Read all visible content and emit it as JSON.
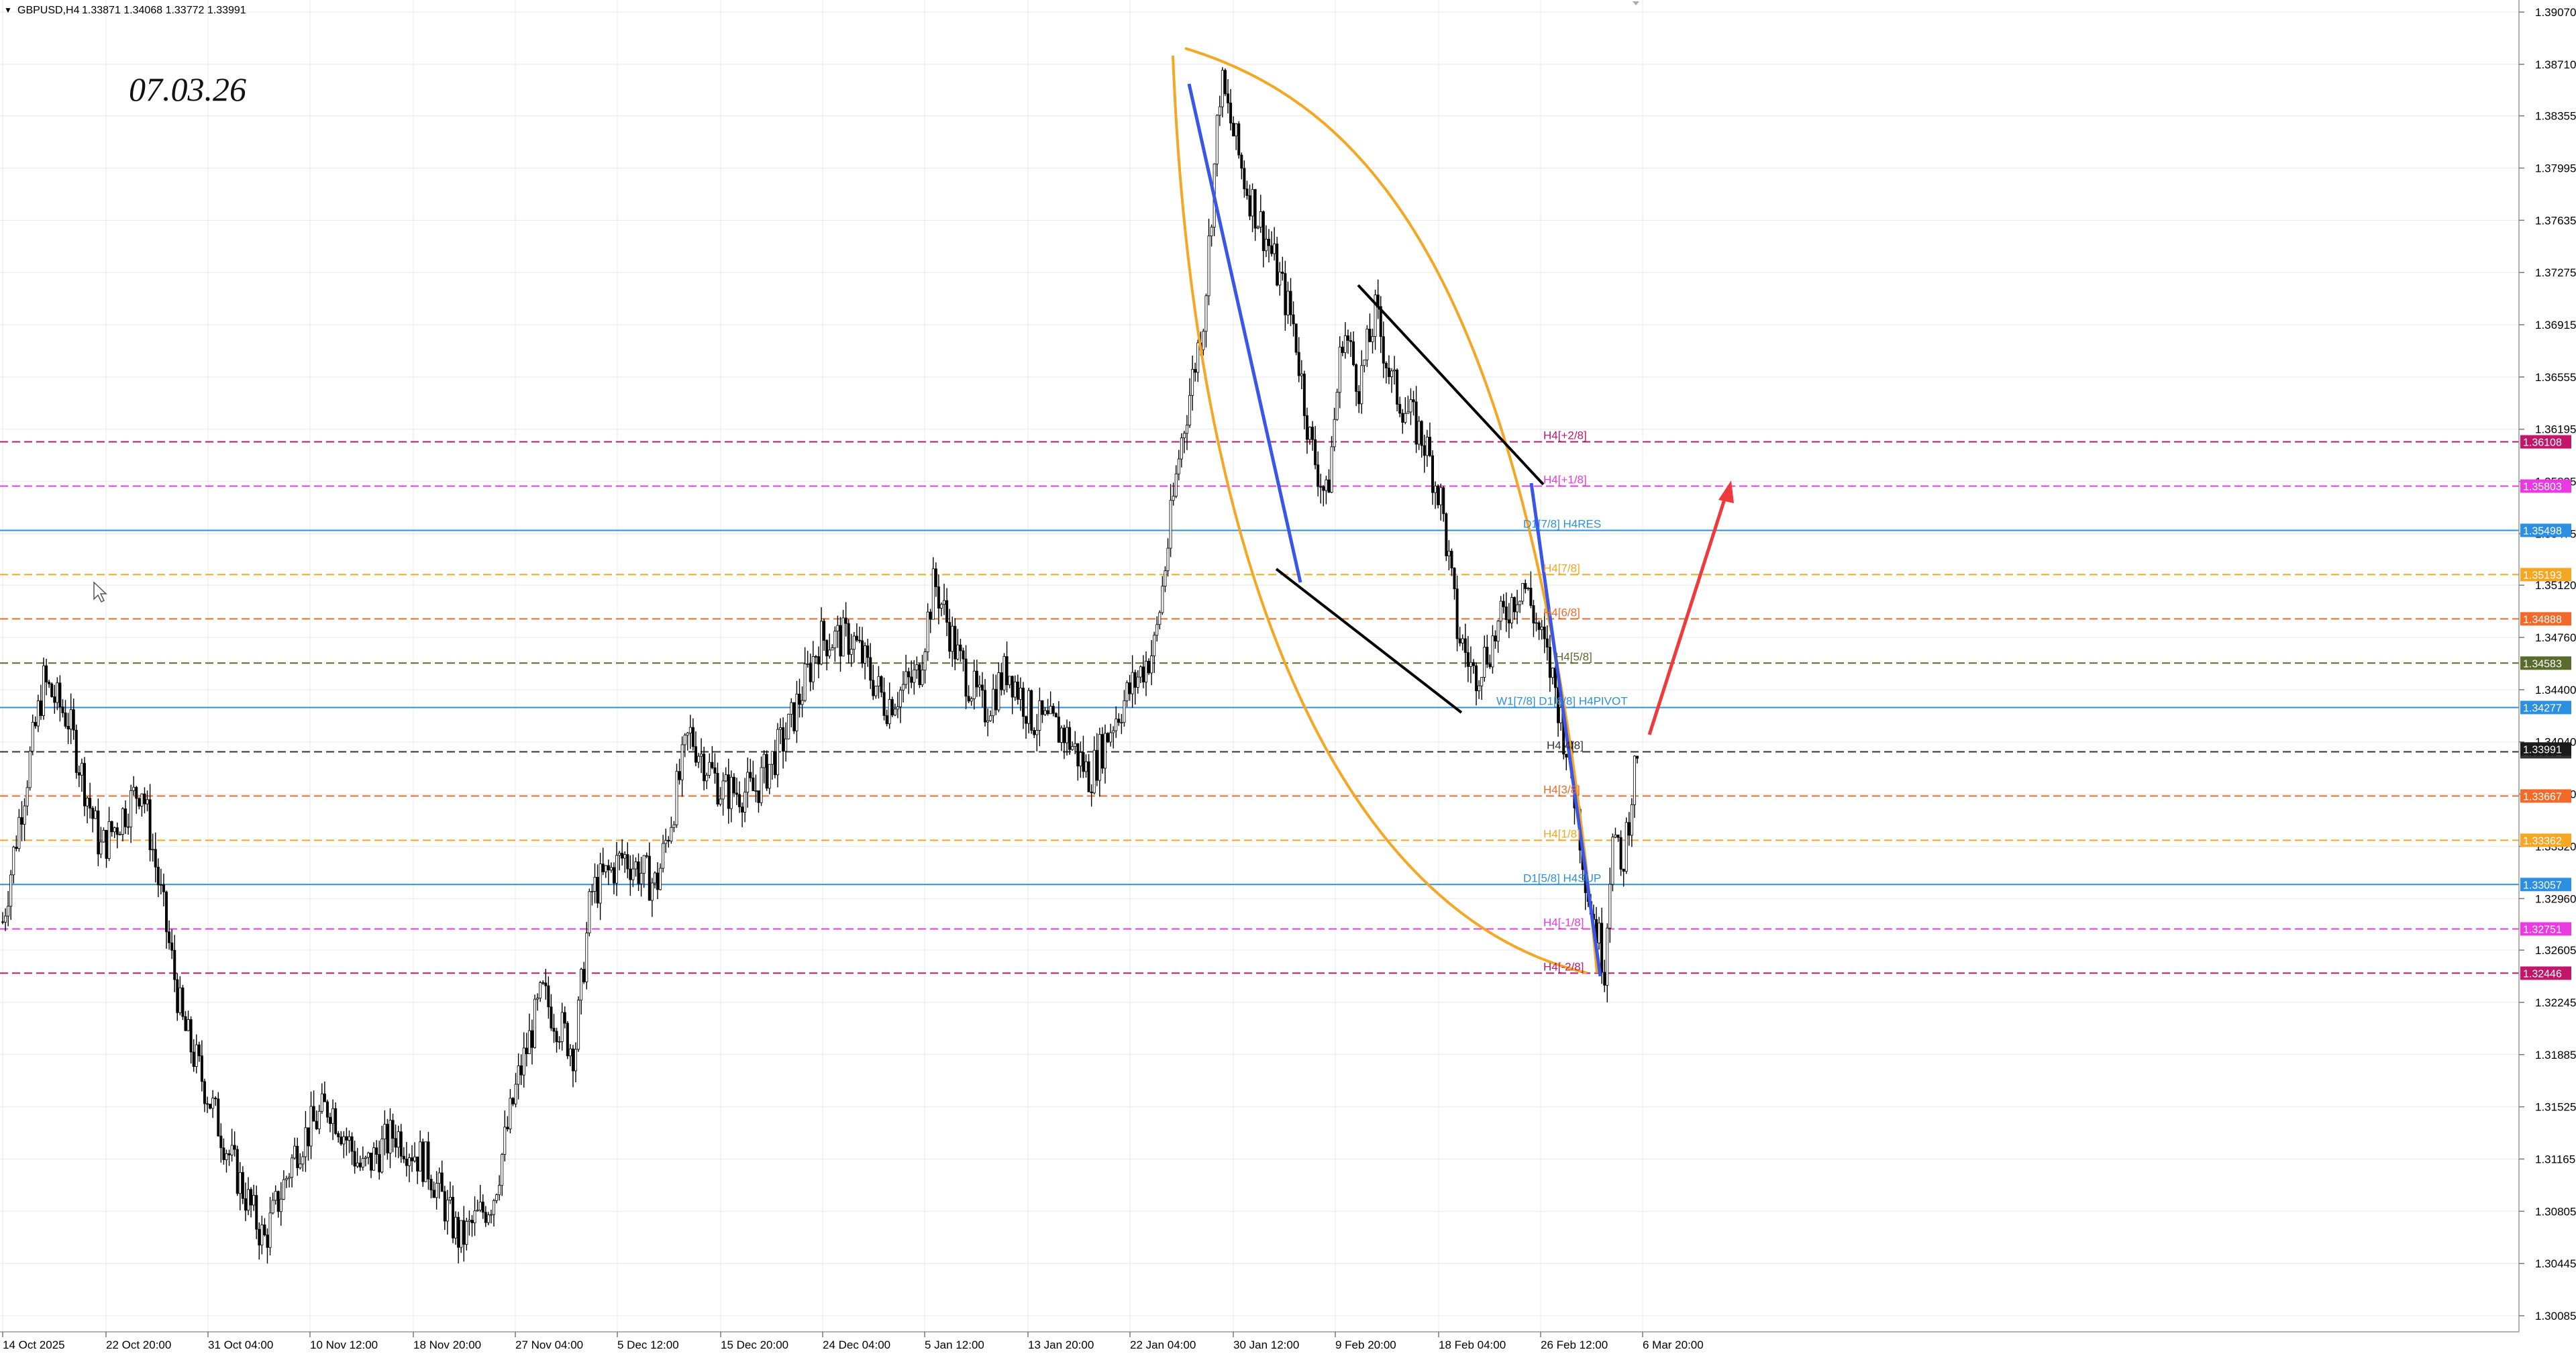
{
  "header": {
    "symbol": "GBPUSD,H4",
    "ohlc": "1.33871 1.34068 1.33772 1.33991"
  },
  "annotation_date": "07.03.26",
  "chart_data": {
    "type": "candlestick",
    "title": "",
    "ylim": [
      1.299,
      1.3918
    ],
    "y_ticks": [
      "1.39070",
      "1.38710",
      "1.38355",
      "1.37995",
      "1.37635",
      "1.37275",
      "1.36915",
      "1.36555",
      "1.36195",
      "1.35835",
      "1.35475",
      "1.35120",
      "1.34760",
      "1.34400",
      "1.34040",
      "1.33680",
      "1.33320",
      "1.32960",
      "1.32605",
      "1.32245",
      "1.31885",
      "1.31525",
      "1.31165",
      "1.30805",
      "1.30445",
      "1.30085"
    ],
    "x_ticks": [
      "14 Oct 2025",
      "22 Oct 20:00",
      "31 Oct 04:00",
      "10 Nov 12:00",
      "18 Nov 20:00",
      "27 Nov 04:00",
      "5 Dec 12:00",
      "15 Dec 20:00",
      "24 Dec 04:00",
      "5 Jan 12:00",
      "13 Jan 20:00",
      "22 Jan 04:00",
      "30 Jan 12:00",
      "9 Feb 20:00",
      "18 Feb 04:00",
      "26 Feb 12:00",
      "6 Mar 20:00"
    ],
    "price_path": [
      [
        0,
        1.328
      ],
      [
        0.01,
        1.335
      ],
      [
        0.025,
        1.3445
      ],
      [
        0.04,
        1.342
      ],
      [
        0.06,
        1.333
      ],
      [
        0.085,
        1.3375
      ],
      [
        0.11,
        1.321
      ],
      [
        0.14,
        1.3115
      ],
      [
        0.16,
        1.306
      ],
      [
        0.18,
        1.3125
      ],
      [
        0.2,
        1.3155
      ],
      [
        0.22,
        1.3108
      ],
      [
        0.24,
        1.3135
      ],
      [
        0.26,
        1.3112
      ],
      [
        0.28,
        1.306
      ],
      [
        0.3,
        1.309
      ],
      [
        0.315,
        1.317
      ],
      [
        0.33,
        1.323
      ],
      [
        0.35,
        1.319
      ],
      [
        0.36,
        1.33
      ],
      [
        0.38,
        1.3325
      ],
      [
        0.4,
        1.3305
      ],
      [
        0.42,
        1.341
      ],
      [
        0.44,
        1.337
      ],
      [
        0.46,
        1.337
      ],
      [
        0.48,
        1.341
      ],
      [
        0.5,
        1.3475
      ],
      [
        0.52,
        1.3475
      ],
      [
        0.54,
        1.343
      ],
      [
        0.56,
        1.345
      ],
      [
        0.57,
        1.3515
      ],
      [
        0.585,
        1.346
      ],
      [
        0.6,
        1.3425
      ],
      [
        0.615,
        1.3455
      ],
      [
        0.63,
        1.342
      ],
      [
        0.65,
        1.341
      ],
      [
        0.665,
        1.338
      ],
      [
        0.68,
        1.342
      ],
      [
        0.695,
        1.345
      ],
      [
        0.705,
        1.347
      ],
      [
        0.72,
        1.3605
      ],
      [
        0.735,
        1.37
      ],
      [
        0.745,
        1.386
      ],
      [
        0.76,
        1.379
      ],
      [
        0.775,
        1.3745
      ],
      [
        0.79,
        1.369
      ],
      [
        0.8,
        1.361
      ],
      [
        0.81,
        1.357
      ],
      [
        0.82,
        1.369
      ],
      [
        0.83,
        1.365
      ],
      [
        0.84,
        1.37
      ],
      [
        0.85,
        1.365
      ],
      [
        0.86,
        1.363
      ],
      [
        0.87,
        1.361
      ],
      [
        0.88,
        1.357
      ],
      [
        0.89,
        1.348
      ],
      [
        0.9,
        1.345
      ],
      [
        0.91,
        1.347
      ],
      [
        0.92,
        1.3495
      ],
      [
        0.93,
        1.3515
      ],
      [
        0.94,
        1.348
      ],
      [
        0.95,
        1.344
      ],
      [
        0.96,
        1.338
      ],
      [
        0.97,
        1.33
      ],
      [
        0.98,
        1.325
      ],
      [
        0.985,
        1.335
      ],
      [
        0.99,
        1.331
      ],
      [
        1.0,
        1.3399
      ]
    ],
    "levels": [
      {
        "price": 1.36108,
        "tag": "1.36108",
        "label": "H4[+2/8]",
        "color": "#c0176b",
        "style": "dash"
      },
      {
        "price": 1.35803,
        "tag": "1.35803",
        "label": "H4[+1/8]",
        "color": "#e83ae0",
        "style": "dash"
      },
      {
        "price": 1.35498,
        "tag": "1.35498",
        "label": "D1[7/8] H4RES",
        "color": "#2d8fe0",
        "style": "solid"
      },
      {
        "price": 1.35193,
        "tag": "1.35193",
        "label": "H4[7/8]",
        "color": "#f5a623",
        "style": "dash"
      },
      {
        "price": 1.34888,
        "tag": "1.34888",
        "label": "H4[6/8]",
        "color": "#f26a2a",
        "style": "dash"
      },
      {
        "price": 1.34583,
        "tag": "1.34583",
        "label": "H4[5/8]",
        "color": "#5a6b2e",
        "style": "dash"
      },
      {
        "price": 1.34277,
        "tag": "1.34277",
        "label": "W1[7/8] D1[6/8] H4PIVOT",
        "color": "#2d8fe0",
        "style": "solid"
      },
      {
        "price": 1.33972,
        "tag": "1.33972",
        "label": "H4[4/8]",
        "color": "#333333",
        "style": "dash"
      },
      {
        "price": 1.33667,
        "tag": "1.33667",
        "label": "H4[3/8]",
        "color": "#f26a2a",
        "style": "dash"
      },
      {
        "price": 1.33362,
        "tag": "1.33362",
        "label": "H4[1/8]",
        "color": "#f5a623",
        "style": "dash"
      },
      {
        "price": 1.33057,
        "tag": "1.33057",
        "label": "D1[5/8] H4SUP",
        "color": "#2d8fe0",
        "style": "solid"
      },
      {
        "price": 1.32751,
        "tag": "1.32751",
        "label": "H4[-1/8]",
        "color": "#e83ae0",
        "style": "dash"
      },
      {
        "price": 1.32446,
        "tag": "1.32446",
        "label": "H4[-2/8]",
        "color": "#c0176b",
        "style": "dash"
      }
    ],
    "current_price": {
      "price": 1.33991,
      "tag": "1.33991",
      "color": "#1a1a1a"
    }
  },
  "colors": {
    "arc": "#f5a623",
    "blue_line": "#3a56e8",
    "wedge": "#000000",
    "arrow": "#ee3a3a",
    "candle": "#000000",
    "grid": "#e8e8e8"
  }
}
